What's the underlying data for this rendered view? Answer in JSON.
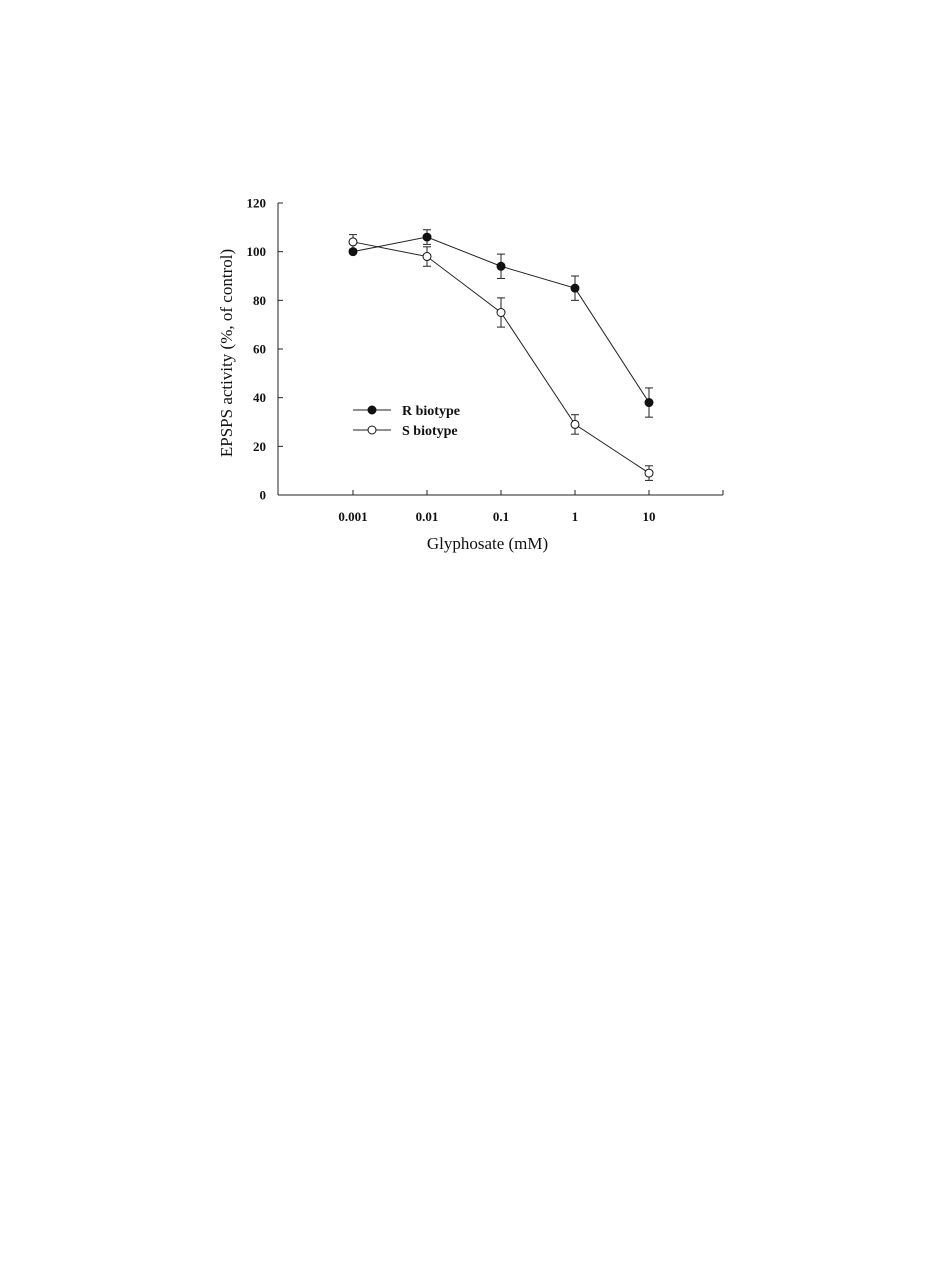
{
  "chart_data": {
    "type": "line",
    "title": "",
    "xlabel": "Glyphosate (mM)",
    "ylabel": "EPSPS activity (%, of control)",
    "x_scale": "log",
    "x": [
      "0.001",
      "0.01",
      "0.1",
      "1",
      "10"
    ],
    "x_values": [
      0.001,
      0.01,
      0.1,
      1,
      10
    ],
    "ylim": [
      0,
      120
    ],
    "yticks": [
      "0",
      "20",
      "40",
      "60",
      "80",
      "100",
      "120"
    ],
    "ytick_values": [
      0,
      20,
      40,
      60,
      80,
      100,
      120
    ],
    "grid": false,
    "legend_position": "center-left",
    "series": [
      {
        "name": "R biotype",
        "marker": "filled-circle",
        "color": "#111111",
        "values": [
          100,
          106,
          94,
          85,
          38
        ],
        "errors": [
          0,
          3,
          5,
          5,
          6
        ]
      },
      {
        "name": "S biotype",
        "marker": "open-circle",
        "color": "#111111",
        "values": [
          104,
          98,
          75,
          29,
          9
        ],
        "errors": [
          3,
          4,
          6,
          4,
          3
        ]
      }
    ]
  }
}
